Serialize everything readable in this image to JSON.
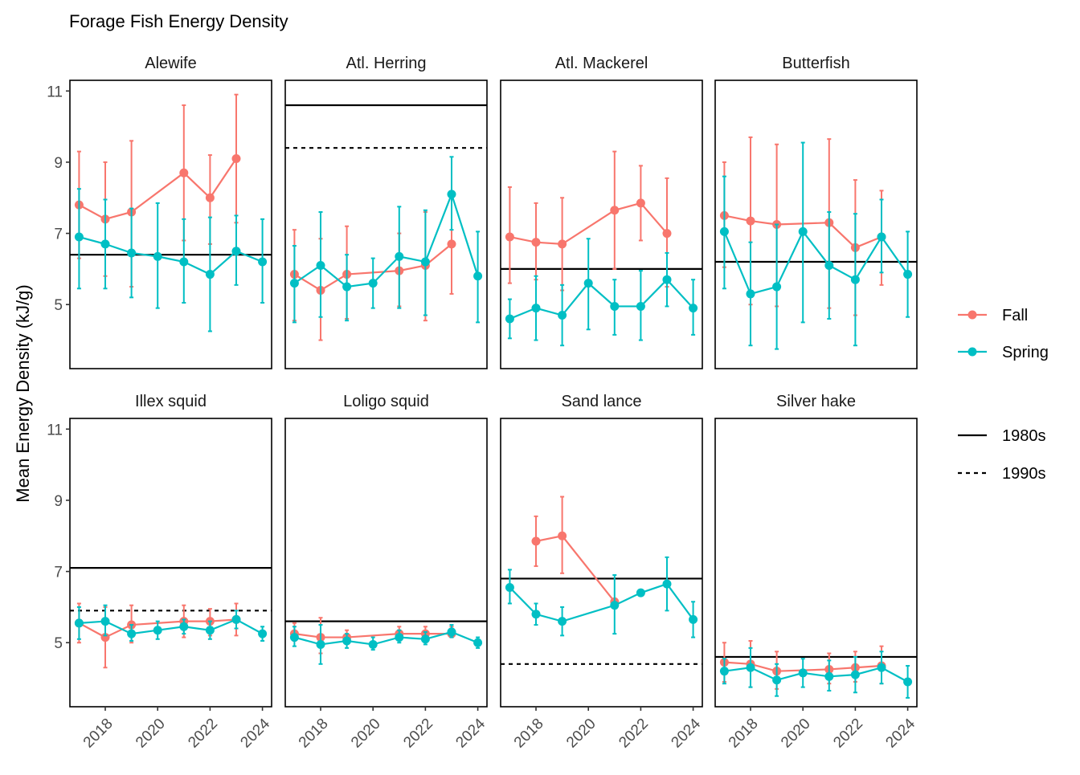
{
  "chart_data": {
    "type": "line",
    "title": "Forage Fish Energy Density",
    "xlabel": "",
    "ylabel": "Mean Energy Density (kJ/g)",
    "ylim": [
      3.2,
      11.3
    ],
    "xlim": [
      2016.65,
      2024.35
    ],
    "xticks": [
      "2018",
      "2020",
      "2022",
      "2024"
    ],
    "yticks": [
      "5",
      "7",
      "9",
      "11"
    ],
    "grid": false,
    "legend_placement": "right",
    "legend": {
      "season": [
        {
          "label": "Fall",
          "color": "#F8766D"
        },
        {
          "label": "Spring",
          "color": "#00BFC4"
        }
      ],
      "decade": [
        {
          "label": "1980s",
          "linetype": "solid"
        },
        {
          "label": "1990s",
          "linetype": "dashed"
        }
      ]
    },
    "panels": [
      {
        "name": "Alewife",
        "ref_1980s": 6.4,
        "ref_1990s": null,
        "series": [
          {
            "name": "Fall",
            "x": [
              2017,
              2018,
              2019,
              2021,
              2022,
              2023
            ],
            "y": [
              7.8,
              7.4,
              7.6,
              8.7,
              8.0,
              9.1
            ],
            "ymin": [
              6.3,
              5.8,
              5.5,
              6.8,
              6.7,
              7.3
            ],
            "ymax": [
              9.3,
              9.0,
              9.6,
              10.6,
              9.2,
              10.9
            ]
          },
          {
            "name": "Spring",
            "x": [
              2017,
              2018,
              2019,
              2020,
              2021,
              2022,
              2023,
              2024
            ],
            "y": [
              6.9,
              6.7,
              6.45,
              6.35,
              6.2,
              5.85,
              6.5,
              6.2
            ],
            "ymin": [
              5.45,
              5.45,
              5.2,
              4.9,
              5.05,
              4.25,
              5.55,
              5.05
            ],
            "ymax": [
              8.25,
              7.95,
              7.7,
              7.85,
              7.4,
              7.45,
              7.5,
              7.4
            ]
          }
        ]
      },
      {
        "name": "Atl. Herring",
        "ref_1980s": 10.6,
        "ref_1990s": 9.4,
        "series": [
          {
            "name": "Fall",
            "x": [
              2017,
              2018,
              2019,
              2021,
              2022,
              2023
            ],
            "y": [
              5.85,
              5.4,
              5.85,
              5.95,
              6.1,
              6.7
            ],
            "ymin": [
              4.55,
              4.0,
              4.6,
              4.95,
              4.55,
              5.3
            ],
            "ymax": [
              7.1,
              6.85,
              7.2,
              7.0,
              7.6,
              8.1
            ]
          },
          {
            "name": "Spring",
            "x": [
              2017,
              2018,
              2019,
              2020,
              2021,
              2022,
              2023,
              2024
            ],
            "y": [
              5.6,
              6.1,
              5.5,
              5.6,
              6.35,
              6.2,
              8.1,
              5.8
            ],
            "ymin": [
              4.5,
              4.65,
              4.55,
              4.9,
              4.9,
              4.7,
              7.1,
              4.5
            ],
            "ymax": [
              6.65,
              7.6,
              6.4,
              6.3,
              7.75,
              7.65,
              9.15,
              7.05
            ]
          }
        ]
      },
      {
        "name": "Atl. Mackerel",
        "ref_1980s": 6.0,
        "ref_1990s": null,
        "series": [
          {
            "name": "Fall",
            "x": [
              2017,
              2018,
              2019,
              2021,
              2022,
              2023
            ],
            "y": [
              6.9,
              6.75,
              6.7,
              7.65,
              7.85,
              7.0
            ],
            "ymin": [
              5.6,
              5.7,
              5.4,
              6.0,
              6.8,
              5.5
            ],
            "ymax": [
              8.3,
              7.85,
              8.0,
              9.3,
              8.9,
              8.55
            ]
          },
          {
            "name": "Spring",
            "x": [
              2017,
              2018,
              2019,
              2020,
              2021,
              2022,
              2023,
              2024
            ],
            "y": [
              4.6,
              4.9,
              4.7,
              5.6,
              4.95,
              4.95,
              5.7,
              4.9
            ],
            "ymin": [
              4.05,
              4.0,
              3.85,
              4.3,
              4.15,
              4.0,
              4.95,
              4.15
            ],
            "ymax": [
              5.15,
              5.8,
              5.55,
              6.85,
              5.7,
              5.95,
              6.45,
              5.7
            ]
          }
        ]
      },
      {
        "name": "Butterfish",
        "ref_1980s": 6.2,
        "ref_1990s": null,
        "series": [
          {
            "name": "Fall",
            "x": [
              2017,
              2018,
              2019,
              2021,
              2022,
              2023
            ],
            "y": [
              7.5,
              7.35,
              7.25,
              7.3,
              6.6,
              6.9
            ],
            "ymin": [
              6.05,
              5.0,
              4.95,
              4.9,
              4.7,
              5.55
            ],
            "ymax": [
              9.0,
              9.7,
              9.5,
              9.65,
              8.5,
              8.2
            ]
          },
          {
            "name": "Spring",
            "x": [
              2017,
              2018,
              2019,
              2020,
              2021,
              2022,
              2023,
              2024
            ],
            "y": [
              7.05,
              5.3,
              5.5,
              7.05,
              6.1,
              5.7,
              6.9,
              5.85
            ],
            "ymin": [
              5.45,
              3.85,
              3.75,
              4.5,
              4.6,
              3.85,
              5.9,
              4.65
            ],
            "ymax": [
              8.6,
              6.75,
              7.25,
              9.55,
              7.6,
              7.55,
              7.95,
              7.05
            ]
          }
        ]
      },
      {
        "name": "Illex squid",
        "ref_1980s": 7.1,
        "ref_1990s": 5.9,
        "series": [
          {
            "name": "Fall",
            "x": [
              2017,
              2018,
              2019,
              2021,
              2022,
              2023
            ],
            "y": [
              5.55,
              5.15,
              5.5,
              5.6,
              5.6,
              5.65
            ],
            "ymin": [
              5.0,
              4.3,
              5.0,
              5.15,
              5.2,
              5.2
            ],
            "ymax": [
              6.1,
              6.0,
              6.05,
              6.05,
              5.95,
              6.1
            ]
          },
          {
            "name": "Spring",
            "x": [
              2017,
              2018,
              2019,
              2020,
              2021,
              2022,
              2023,
              2024
            ],
            "y": [
              5.55,
              5.6,
              5.25,
              5.35,
              5.45,
              5.35,
              5.65,
              5.25
            ],
            "ymin": [
              5.1,
              5.2,
              5.05,
              5.1,
              5.25,
              5.1,
              5.4,
              5.05
            ],
            "ymax": [
              6.0,
              6.05,
              5.5,
              5.6,
              5.65,
              5.6,
              5.9,
              5.45
            ]
          }
        ]
      },
      {
        "name": "Loligo squid",
        "ref_1980s": 5.6,
        "ref_1990s": null,
        "series": [
          {
            "name": "Fall",
            "x": [
              2017,
              2018,
              2019,
              2021,
              2022,
              2023
            ],
            "y": [
              5.25,
              5.15,
              5.15,
              5.25,
              5.25,
              5.25
            ],
            "ymin": [
              5.05,
              4.7,
              5.0,
              5.1,
              5.1,
              5.15
            ],
            "ymax": [
              5.55,
              5.7,
              5.35,
              5.45,
              5.45,
              5.45
            ]
          },
          {
            "name": "Spring",
            "x": [
              2017,
              2018,
              2019,
              2020,
              2021,
              2022,
              2023,
              2024
            ],
            "y": [
              5.15,
              4.95,
              5.05,
              4.95,
              5.15,
              5.1,
              5.3,
              5.0
            ],
            "ymin": [
              4.9,
              4.4,
              4.85,
              4.8,
              5.0,
              4.95,
              5.15,
              4.85
            ],
            "ymax": [
              5.45,
              5.5,
              5.25,
              5.15,
              5.35,
              5.3,
              5.5,
              5.15
            ]
          }
        ]
      },
      {
        "name": "Sand lance",
        "ref_1980s": 6.8,
        "ref_1990s": 4.4,
        "series": [
          {
            "name": "Fall",
            "x": [
              2018,
              2019,
              2021
            ],
            "y": [
              7.85,
              8.0,
              6.15
            ],
            "ymin": [
              7.15,
              6.95,
              6.1
            ],
            "ymax": [
              8.55,
              9.1,
              6.2
            ]
          },
          {
            "name": "Spring",
            "x": [
              2017,
              2018,
              2019,
              2021,
              2022,
              2023,
              2024
            ],
            "y": [
              6.55,
              5.8,
              5.6,
              6.05,
              6.4,
              6.65,
              5.65
            ],
            "ymin": [
              6.1,
              5.5,
              5.2,
              5.25,
              6.35,
              5.9,
              5.15
            ],
            "ymax": [
              7.05,
              6.1,
              6.0,
              6.9,
              6.45,
              7.4,
              6.15
            ]
          }
        ]
      },
      {
        "name": "Silver hake",
        "ref_1980s": 4.6,
        "ref_1990s": null,
        "series": [
          {
            "name": "Fall",
            "x": [
              2017,
              2018,
              2019,
              2021,
              2022,
              2023
            ],
            "y": [
              4.45,
              4.4,
              4.2,
              4.25,
              4.3,
              4.35
            ],
            "ymin": [
              3.9,
              3.75,
              3.7,
              3.85,
              3.9,
              3.85
            ],
            "ymax": [
              5.0,
              5.05,
              4.75,
              4.7,
              4.75,
              4.9
            ]
          },
          {
            "name": "Spring",
            "x": [
              2017,
              2018,
              2019,
              2020,
              2021,
              2022,
              2023,
              2024
            ],
            "y": [
              4.2,
              4.3,
              3.95,
              4.15,
              4.05,
              4.1,
              4.3,
              3.9
            ],
            "ymin": [
              3.85,
              3.75,
              3.5,
              3.75,
              3.65,
              3.6,
              3.85,
              3.45
            ],
            "ymax": [
              4.55,
              4.85,
              4.4,
              4.55,
              4.5,
              4.6,
              4.75,
              4.35
            ]
          }
        ]
      }
    ]
  }
}
